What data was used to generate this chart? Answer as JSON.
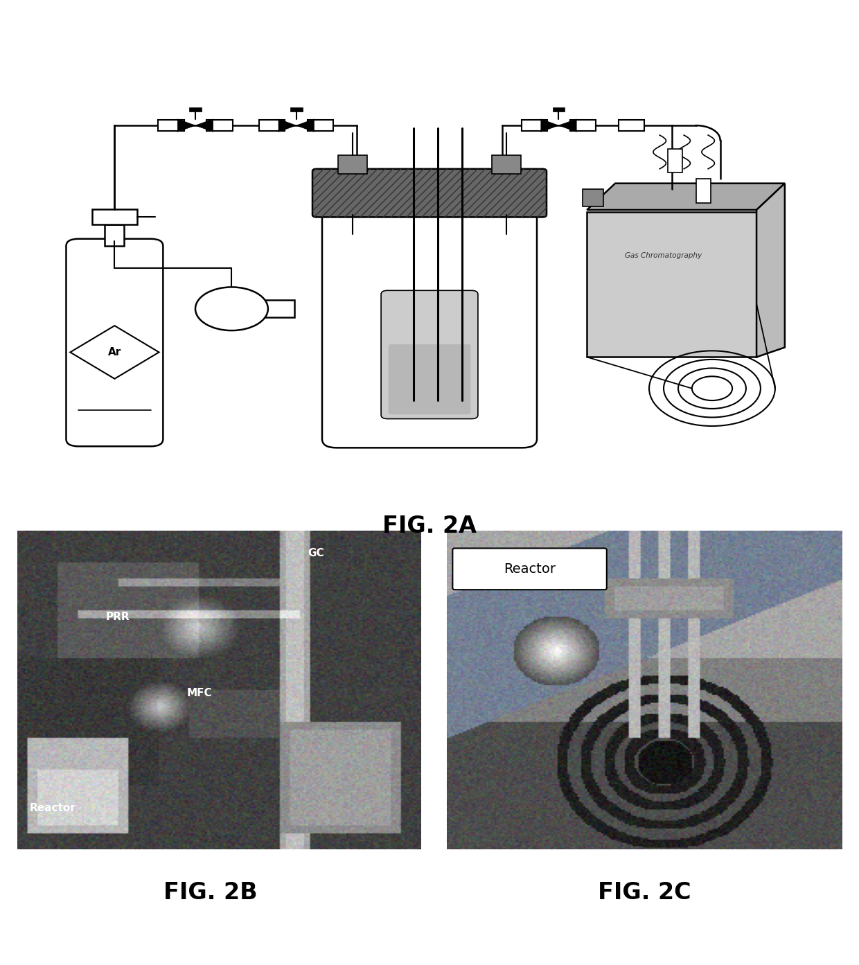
{
  "fig2a_label": "FIG. 2A",
  "fig2b_label": "FIG. 2B",
  "fig2c_label": "FIG. 2C",
  "background_color": "#ffffff",
  "label_fontsize": 24,
  "label_fontweight": "bold",
  "fig_width": 12.4,
  "fig_height": 13.93,
  "fig_dpi": 100
}
